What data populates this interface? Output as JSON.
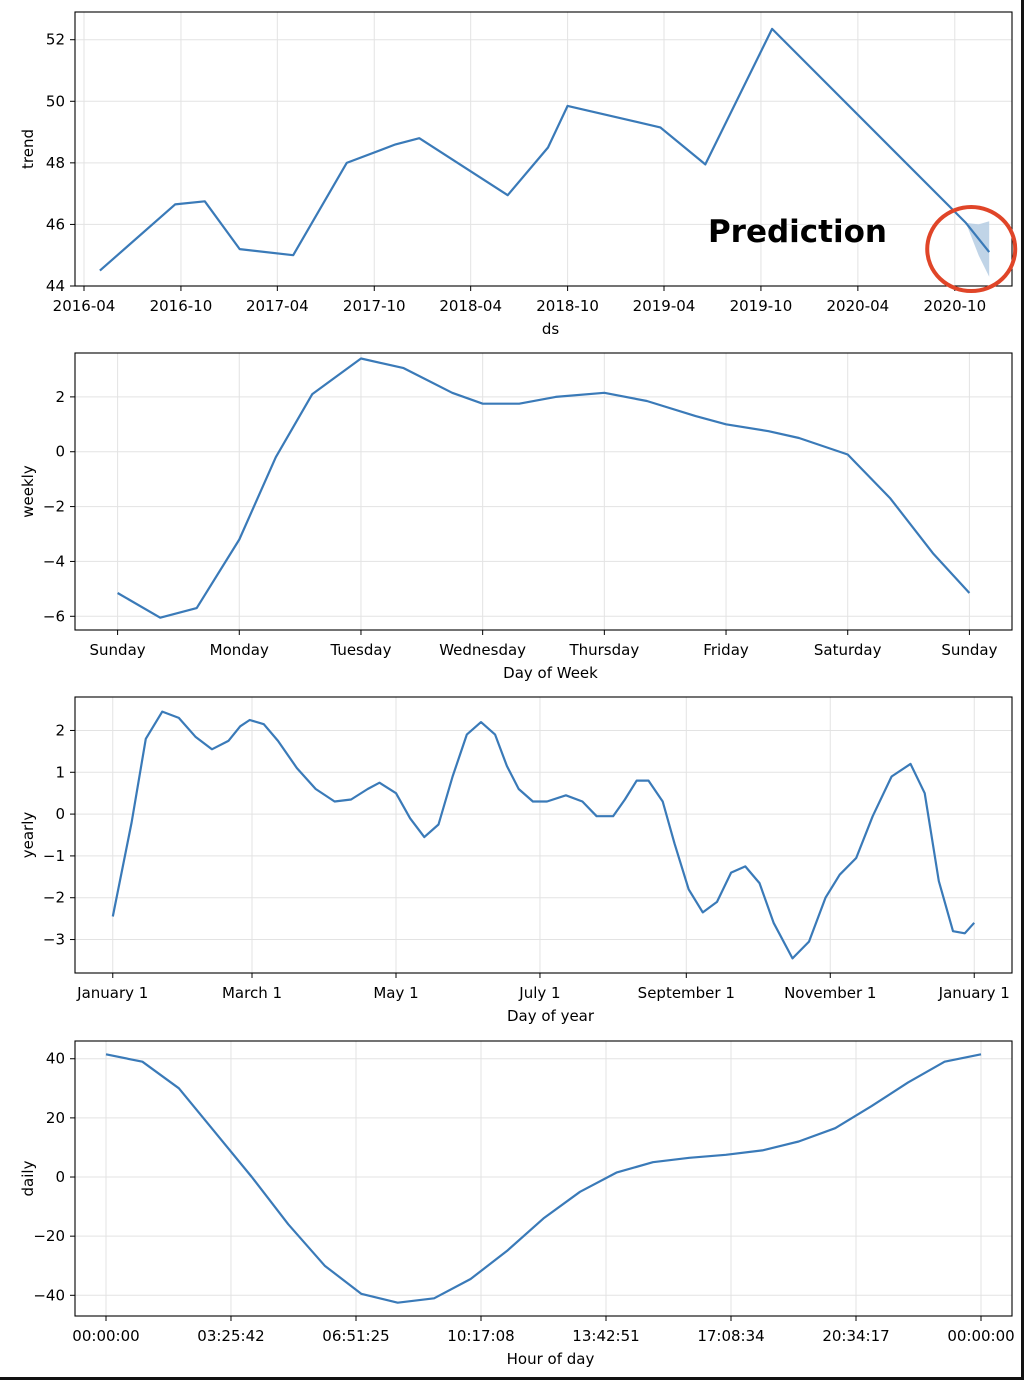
{
  "chart_data": [
    {
      "type": "line",
      "title": "",
      "xlabel": "ds",
      "ylabel": "trend",
      "x_is_date": true,
      "xlim": [
        "2016-03-15",
        "2021-01-17"
      ],
      "ylim": [
        44,
        52.9
      ],
      "xticks": [
        "2016-04-01",
        "2016-10-01",
        "2017-04-01",
        "2017-10-01",
        "2018-04-01",
        "2018-10-01",
        "2019-04-01",
        "2019-10-01",
        "2020-04-01",
        "2020-10-01"
      ],
      "xtick_labels": [
        "2016-04",
        "2016-10",
        "2017-04",
        "2017-10",
        "2018-04",
        "2018-10",
        "2019-04",
        "2019-10",
        "2020-04",
        "2020-10"
      ],
      "yticks": [
        44,
        46,
        48,
        50,
        52
      ],
      "ytick_labels": [
        "44",
        "46",
        "48",
        "50",
        "52"
      ],
      "grid": true,
      "series": [
        {
          "x": [
            "2016-05-01",
            "2016-09-20",
            "2016-11-15",
            "2017-01-20",
            "2017-05-01",
            "2017-08-10",
            "2017-11-10",
            "2017-12-25",
            "2018-06-10",
            "2018-08-25",
            "2018-10-01",
            "2019-03-25",
            "2019-06-18",
            "2019-10-22",
            "2020-10-22",
            "2020-12-05"
          ],
          "y": [
            44.5,
            46.65,
            46.75,
            45.2,
            45.0,
            48.0,
            48.6,
            48.8,
            46.95,
            48.5,
            49.85,
            49.15,
            47.95,
            52.35,
            46.05,
            45.1
          ],
          "color": "#3a7ab8"
        }
      ],
      "uncertainty": {
        "x": [
          "2020-10-22",
          "2020-11-15",
          "2020-12-05"
        ],
        "upper": [
          46.05,
          46.0,
          46.1
        ],
        "lower": [
          46.05,
          45.0,
          44.3
        ],
        "color": "#b5cde3"
      },
      "annotation": {
        "text": "Prediction",
        "highlight_color": "#e04528"
      }
    },
    {
      "type": "line",
      "title": "",
      "xlabel": "Day of Week",
      "ylabel": "weekly",
      "xlim": [
        -0.35,
        7.35
      ],
      "ylim": [
        -6.5,
        3.6
      ],
      "xticks": [
        0,
        1,
        2,
        3,
        4,
        5,
        6,
        7
      ],
      "xtick_labels": [
        "Sunday",
        "Monday",
        "Tuesday",
        "Wednesday",
        "Thursday",
        "Friday",
        "Saturday",
        "Sunday"
      ],
      "yticks": [
        -6,
        -4,
        -2,
        0,
        2
      ],
      "ytick_labels": [
        "−6",
        "−4",
        "−2",
        "0",
        "2"
      ],
      "grid": true,
      "series": [
        {
          "x": [
            0,
            0.35,
            0.65,
            1.0,
            1.3,
            1.6,
            2.0,
            2.35,
            2.75,
            3.0,
            3.3,
            3.6,
            4.0,
            4.35,
            4.75,
            5.0,
            5.35,
            5.6,
            6.0,
            6.35,
            6.7,
            7.0
          ],
          "y": [
            -5.15,
            -6.05,
            -5.7,
            -3.2,
            -0.2,
            2.1,
            3.4,
            3.05,
            2.15,
            1.75,
            1.75,
            2.0,
            2.15,
            1.85,
            1.3,
            1.0,
            0.75,
            0.5,
            -0.1,
            -1.7,
            -3.7,
            -5.15
          ],
          "color": "#3a7ab8"
        }
      ]
    },
    {
      "type": "line",
      "title": "",
      "xlabel": "Day of year",
      "ylabel": "yearly",
      "xlim": [
        -16,
        381
      ],
      "ylim": [
        -3.8,
        2.8
      ],
      "xticks": [
        0,
        59,
        120,
        181,
        243,
        304,
        365
      ],
      "xtick_labels": [
        "January 1",
        "March 1",
        "May 1",
        "July 1",
        "September 1",
        "November 1",
        "January 1"
      ],
      "yticks": [
        -3,
        -2,
        -1,
        0,
        1,
        2
      ],
      "ytick_labels": [
        "−3",
        "−2",
        "−1",
        "0",
        "1",
        "2"
      ],
      "grid": true,
      "series": [
        {
          "x": [
            0,
            8,
            14,
            21,
            28,
            35,
            42,
            49,
            54,
            58,
            64,
            70,
            78,
            86,
            94,
            101,
            108,
            113,
            120,
            126,
            132,
            138,
            144,
            150,
            156,
            162,
            167,
            172,
            178,
            184,
            192,
            199,
            205,
            212,
            217,
            222,
            227,
            233,
            238,
            244,
            250,
            256,
            262,
            268,
            274,
            280,
            288,
            295,
            302,
            308,
            315,
            322,
            330,
            338,
            344,
            350,
            356,
            361,
            365
          ],
          "y": [
            -2.45,
            -0.2,
            1.8,
            2.45,
            2.3,
            1.85,
            1.55,
            1.75,
            2.1,
            2.25,
            2.15,
            1.75,
            1.1,
            0.6,
            0.3,
            0.35,
            0.6,
            0.75,
            0.5,
            -0.1,
            -0.55,
            -0.25,
            0.9,
            1.9,
            2.2,
            1.9,
            1.15,
            0.6,
            0.3,
            0.3,
            0.45,
            0.3,
            -0.05,
            -0.05,
            0.35,
            0.8,
            0.8,
            0.3,
            -0.7,
            -1.8,
            -2.35,
            -2.1,
            -1.4,
            -1.25,
            -1.65,
            -2.6,
            -3.45,
            -3.05,
            -2.0,
            -1.45,
            -1.05,
            -0.05,
            0.9,
            1.2,
            0.5,
            -1.6,
            -2.8,
            -2.85,
            -2.6
          ],
          "color": "#3a7ab8"
        }
      ]
    },
    {
      "type": "line",
      "title": "",
      "xlabel": "Hour of day",
      "ylabel": "daily",
      "xlim": [
        -0.85,
        24.85
      ],
      "ylim": [
        -47,
        46
      ],
      "xticks": [
        0,
        3.4283,
        6.8571,
        10.2856,
        13.7142,
        17.1428,
        20.5714,
        24
      ],
      "xtick_labels": [
        "00:00:00",
        "03:25:42",
        "06:51:25",
        "10:17:08",
        "13:42:51",
        "17:08:34",
        "20:34:17",
        "00:00:00"
      ],
      "yticks": [
        -40,
        -20,
        0,
        20,
        40
      ],
      "ytick_labels": [
        "−40",
        "−20",
        "0",
        "20",
        "40"
      ],
      "grid": true,
      "series": [
        {
          "x": [
            0,
            1,
            2,
            3,
            4,
            5,
            6,
            7,
            8,
            9,
            10,
            11,
            12,
            13,
            14,
            15,
            16,
            17,
            18,
            19,
            20,
            21,
            22,
            23,
            24
          ],
          "y": [
            41.5,
            39,
            30,
            15,
            0,
            -16,
            -30,
            -39.5,
            -42.5,
            -41,
            -34.5,
            -25,
            -14,
            -5,
            1.5,
            5,
            6.5,
            7.5,
            9,
            12,
            16.5,
            24,
            32,
            39,
            41.5
          ],
          "color": "#3a7ab8"
        }
      ]
    }
  ]
}
